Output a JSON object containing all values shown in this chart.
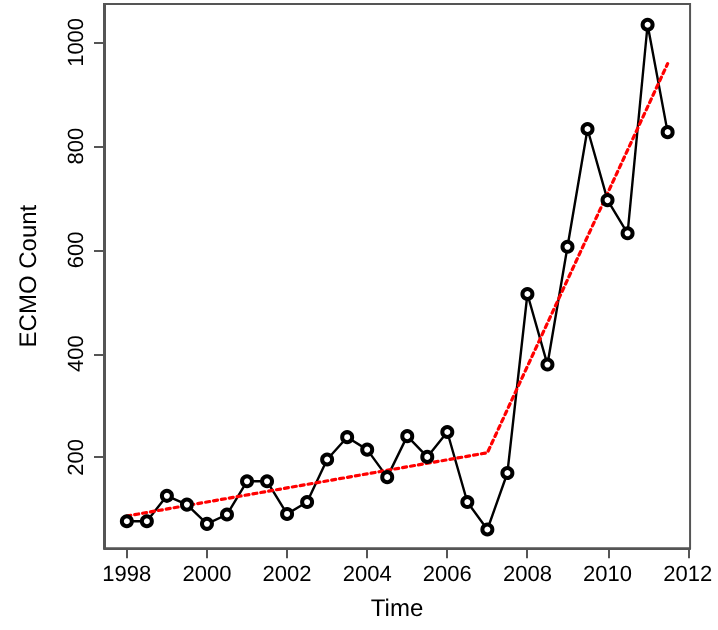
{
  "chart_data": {
    "type": "line",
    "xlabel": "Time",
    "ylabel": "ECMO Count",
    "xlim": [
      1997.43,
      2012.06
    ],
    "ylim": [
      25,
      1074
    ],
    "xticks": [
      1998,
      2000,
      2002,
      2004,
      2006,
      2008,
      2010,
      2012
    ],
    "yticks": [
      200,
      400,
      600,
      800,
      1000
    ],
    "grid": false,
    "series": [
      {
        "color": "#000000",
        "marker": "circle",
        "line_style": "solid",
        "x": [
          1998,
          1998.5,
          1999,
          1999.5,
          2000,
          2000.5,
          2001,
          2001.5,
          2002,
          2002.5,
          2003,
          2003.5,
          2004,
          2004.5,
          2005,
          2005.5,
          2006,
          2006.5,
          2007,
          2007.5,
          2008,
          2008.5,
          2009,
          2009.5,
          2010,
          2010.5,
          2011,
          2011.5
        ],
        "values": [
          77,
          77,
          126,
          109,
          72,
          90,
          154,
          154,
          91,
          114,
          196,
          239,
          215,
          162,
          241,
          201,
          249,
          114,
          61,
          170,
          515,
          379,
          606,
          833,
          696,
          632,
          1034,
          827
        ]
      },
      {
        "color": "#ff0000",
        "marker": "none",
        "line_style": "dotted",
        "x": [
          1998,
          2007,
          2011.5
        ],
        "values": [
          87,
          209,
          959
        ]
      }
    ]
  }
}
